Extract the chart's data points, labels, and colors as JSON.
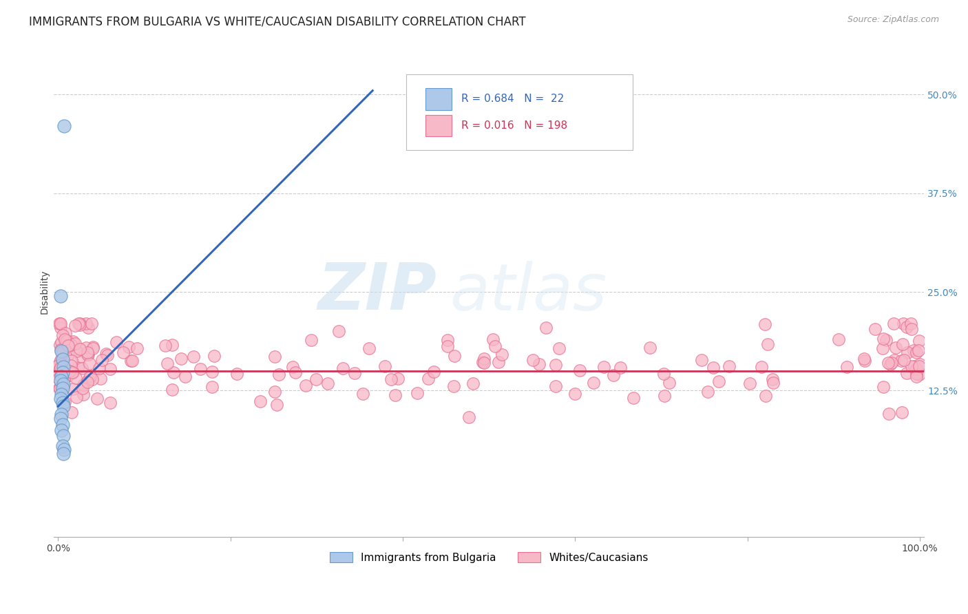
{
  "title": "IMMIGRANTS FROM BULGARIA VS WHITE/CAUCASIAN DISABILITY CORRELATION CHART",
  "source": "Source: ZipAtlas.com",
  "ylabel": "Disability",
  "xlim": [
    -0.005,
    1.005
  ],
  "ylim": [
    -0.06,
    0.56
  ],
  "yticks": [
    0.125,
    0.25,
    0.375,
    0.5
  ],
  "ytick_labels": [
    "12.5%",
    "25.0%",
    "37.5%",
    "50.0%"
  ],
  "xtick_positions": [
    0.0,
    0.2,
    0.4,
    0.6,
    0.8,
    1.0
  ],
  "xtick_labels": [
    "0.0%",
    "",
    "",
    "",
    "",
    "100.0%"
  ],
  "blue_R": 0.684,
  "blue_N": 22,
  "pink_R": 0.016,
  "pink_N": 198,
  "blue_fill_color": "#adc8e8",
  "blue_edge_color": "#6699cc",
  "pink_fill_color": "#f7b8c8",
  "pink_edge_color": "#e87090",
  "blue_line_color": "#3366bb",
  "pink_line_color": "#cc3355",
  "legend_label_blue": "Immigrants from Bulgaria",
  "legend_label_pink": "Whites/Caucasians",
  "watermark_zip": "ZIP",
  "watermark_atlas": "atlas",
  "title_fontsize": 12,
  "source_fontsize": 9,
  "tick_fontsize": 10,
  "blue_trend_x0": 0.0,
  "blue_trend_y0": 0.105,
  "blue_trend_x1": 0.365,
  "blue_trend_y1": 0.505,
  "pink_trend_y": 0.15,
  "grid_color": "#cccccc",
  "grid_style": "--",
  "legend_R_blue_color": "#3366bb",
  "legend_R_pink_color": "#cc3355",
  "legend_N_blue_color": "#3366bb",
  "legend_N_pink_color": "#cc3355"
}
